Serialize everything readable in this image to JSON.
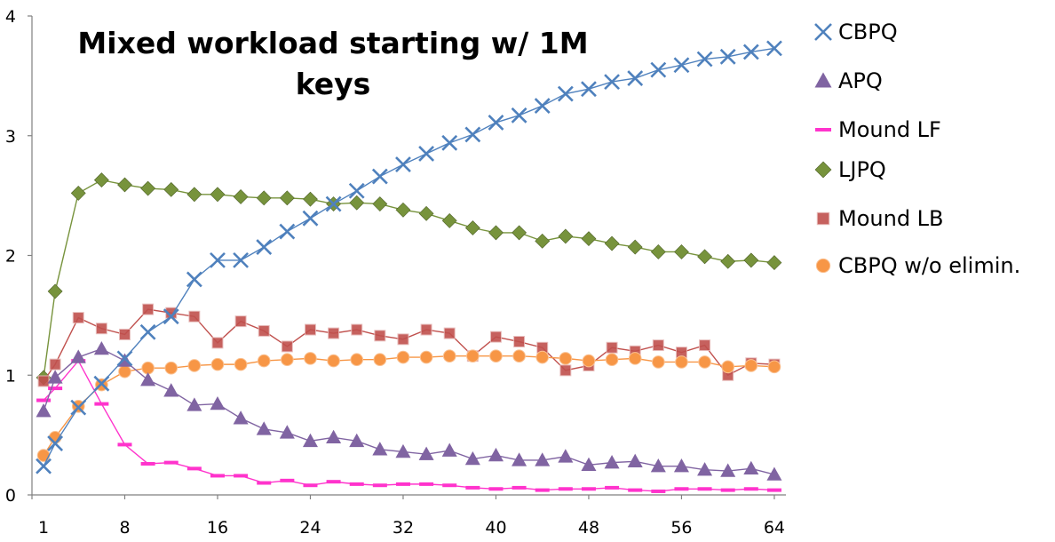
{
  "chart_data": {
    "type": "line",
    "title": "Mixed workload starting w/ 1M keys",
    "xlabel": "",
    "ylabel": "",
    "xlim": [
      0,
      65
    ],
    "ylim": [
      0,
      4
    ],
    "x_ticks": [
      1,
      8,
      16,
      24,
      32,
      40,
      48,
      56,
      64
    ],
    "y_ticks": [
      0,
      1,
      2,
      3,
      4
    ],
    "x": [
      1,
      2,
      4,
      6,
      8,
      10,
      12,
      14,
      16,
      18,
      20,
      22,
      24,
      26,
      28,
      30,
      32,
      34,
      36,
      38,
      40,
      42,
      44,
      46,
      48,
      50,
      52,
      54,
      56,
      58,
      60,
      62,
      64
    ],
    "grid": false,
    "legend_position": "right",
    "series": [
      {
        "name": "CBPQ",
        "color": "#4f81bd",
        "marker": "x",
        "values": [
          0.24,
          0.43,
          0.73,
          0.93,
          1.14,
          1.36,
          1.49,
          1.8,
          1.96,
          1.96,
          2.07,
          2.2,
          2.31,
          2.43,
          2.54,
          2.66,
          2.76,
          2.85,
          2.94,
          3.01,
          3.11,
          3.17,
          3.25,
          3.35,
          3.39,
          3.45,
          3.48,
          3.55,
          3.59,
          3.64,
          3.66,
          3.7,
          3.73
        ]
      },
      {
        "name": "APQ",
        "color": "#8064a2",
        "marker": "triangle",
        "values": [
          0.7,
          0.98,
          1.15,
          1.22,
          1.12,
          0.96,
          0.87,
          0.75,
          0.76,
          0.64,
          0.55,
          0.52,
          0.45,
          0.48,
          0.45,
          0.38,
          0.36,
          0.34,
          0.37,
          0.3,
          0.33,
          0.29,
          0.29,
          0.32,
          0.25,
          0.27,
          0.28,
          0.24,
          0.24,
          0.21,
          0.2,
          0.22,
          0.17
        ]
      },
      {
        "name": "Mound LF",
        "color": "#ff33cc",
        "marker": "dash",
        "values": [
          0.79,
          0.89,
          1.12,
          0.76,
          0.42,
          0.26,
          0.27,
          0.22,
          0.16,
          0.16,
          0.1,
          0.12,
          0.08,
          0.11,
          0.09,
          0.08,
          0.09,
          0.09,
          0.08,
          0.06,
          0.05,
          0.06,
          0.04,
          0.05,
          0.05,
          0.06,
          0.04,
          0.03,
          0.05,
          0.05,
          0.04,
          0.05,
          0.04
        ]
      },
      {
        "name": "LJPQ",
        "color": "#77933c",
        "marker": "diamond",
        "values": [
          0.98,
          1.7,
          2.52,
          2.63,
          2.59,
          2.56,
          2.55,
          2.51,
          2.51,
          2.49,
          2.48,
          2.48,
          2.47,
          2.43,
          2.44,
          2.43,
          2.38,
          2.35,
          2.29,
          2.23,
          2.19,
          2.19,
          2.12,
          2.16,
          2.14,
          2.1,
          2.07,
          2.03,
          2.03,
          1.99,
          1.95,
          1.96,
          1.94
        ]
      },
      {
        "name": "Mound LB",
        "color": "#c0504d",
        "marker": "square",
        "values": [
          0.95,
          1.09,
          1.48,
          1.39,
          1.34,
          1.55,
          1.52,
          1.49,
          1.27,
          1.45,
          1.37,
          1.24,
          1.38,
          1.35,
          1.38,
          1.33,
          1.3,
          1.38,
          1.35,
          1.16,
          1.32,
          1.28,
          1.23,
          1.04,
          1.08,
          1.23,
          1.2,
          1.25,
          1.19,
          1.25,
          1.0,
          1.1,
          1.09
        ]
      },
      {
        "name": "CBPQ w/o elimin.",
        "color": "#f79646",
        "marker": "circle",
        "values": [
          0.33,
          0.48,
          0.74,
          0.92,
          1.03,
          1.06,
          1.06,
          1.08,
          1.09,
          1.09,
          1.12,
          1.13,
          1.14,
          1.12,
          1.13,
          1.13,
          1.15,
          1.15,
          1.16,
          1.16,
          1.16,
          1.16,
          1.15,
          1.14,
          1.12,
          1.13,
          1.14,
          1.11,
          1.11,
          1.11,
          1.07,
          1.08,
          1.07
        ]
      }
    ]
  }
}
